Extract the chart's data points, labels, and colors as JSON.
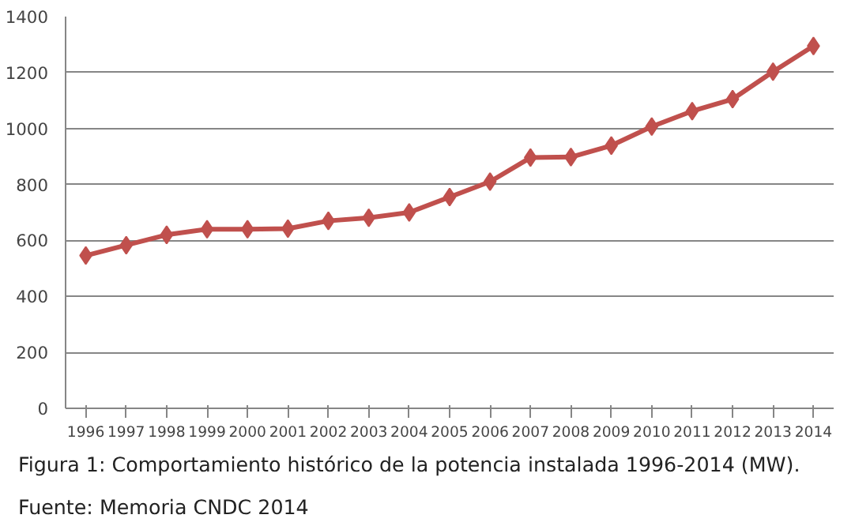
{
  "chart_data": {
    "type": "line",
    "categories": [
      "1996",
      "1997",
      "1998",
      "1999",
      "2000",
      "2001",
      "2002",
      "2003",
      "2004",
      "2005",
      "2006",
      "2007",
      "2008",
      "2009",
      "2010",
      "2011",
      "2012",
      "2013",
      "2014"
    ],
    "series": [
      {
        "color": "#c0504d",
        "values": [
          546,
          583,
          620,
          640,
          640,
          642,
          670,
          681,
          700,
          755,
          810,
          896,
          898,
          939,
          1007,
          1062,
          1105,
          1203,
          1295
        ]
      }
    ],
    "ylim": [
      0,
      1400
    ],
    "yticks": [
      0,
      200,
      400,
      600,
      800,
      1000,
      1200,
      1400
    ],
    "grid": "y",
    "marker": "diamond",
    "line_style": "solid",
    "annotations": [
      "Figura 1: Comportamiento histórico de la potencia instalada 1996-2014 (MW).",
      "Fuente: Memoria CNDC 2014"
    ]
  }
}
